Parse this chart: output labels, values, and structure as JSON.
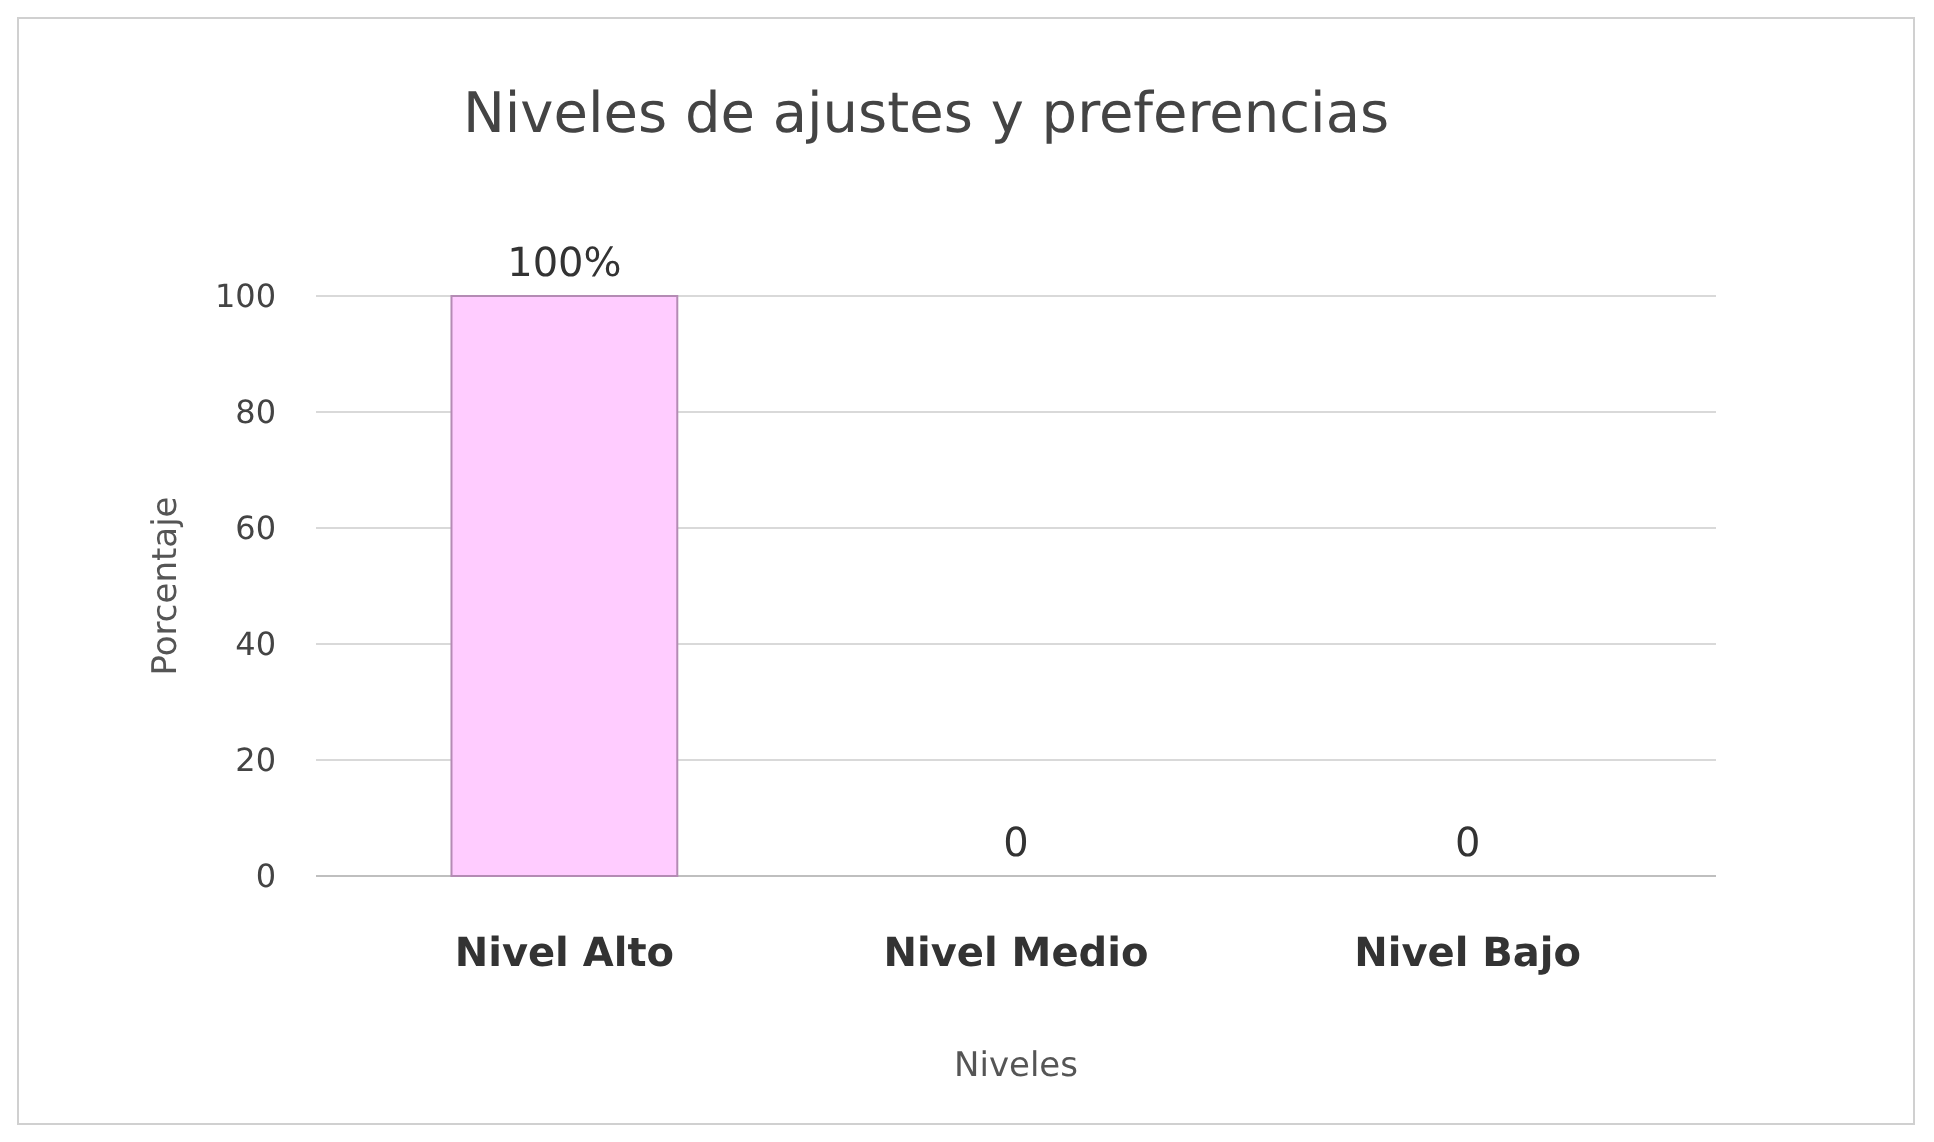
{
  "chart_data": {
    "type": "bar",
    "title": "Niveles de ajustes y preferencias",
    "xlabel": "Niveles",
    "ylabel": "Porcentaje",
    "categories": [
      "Nivel Alto",
      "Nivel Medio",
      "Nivel Bajo"
    ],
    "values": [
      100,
      0,
      0
    ],
    "value_labels": [
      "100%",
      "0",
      "0"
    ],
    "color": "#ffccff",
    "ylim": [
      0,
      100
    ],
    "yticks": [
      0,
      20,
      40,
      60,
      80,
      100
    ],
    "grid": "y"
  }
}
